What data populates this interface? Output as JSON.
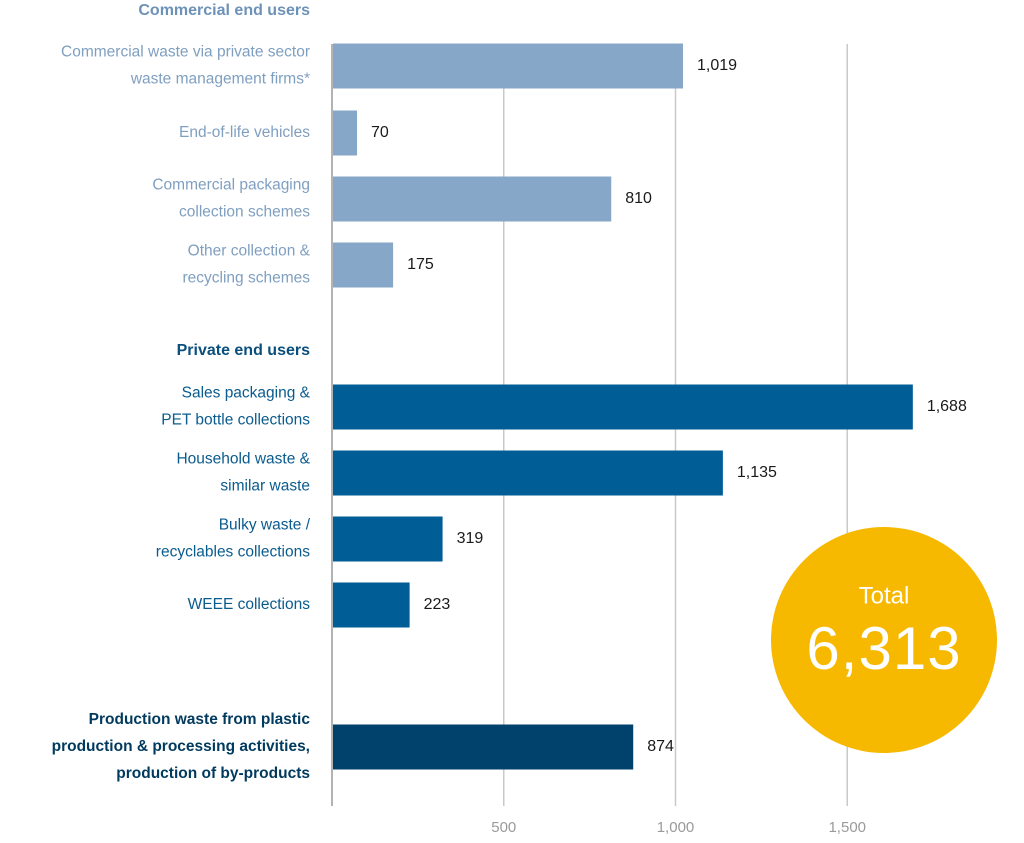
{
  "chart_data": {
    "type": "bar",
    "orientation": "horizontal",
    "groups": [
      {
        "title": "Commercial end users",
        "color": "#87a7c9",
        "label_color": "#7f9fc0",
        "title_color": "#6d92b8",
        "items": [
          {
            "label": [
              "Commercial waste via private sector",
              "waste management firms*"
            ],
            "value": 1019,
            "value_label": "1,019"
          },
          {
            "label": [
              "End-of-life vehicles"
            ],
            "value": 70,
            "value_label": "70"
          },
          {
            "label": [
              "Commercial packaging",
              "collection schemes"
            ],
            "value": 810,
            "value_label": "810"
          },
          {
            "label": [
              "Other collection &",
              "recycling schemes"
            ],
            "value": 175,
            "value_label": "175"
          }
        ]
      },
      {
        "title": "Private end users",
        "color": "#005d96",
        "label_color": "#0a5b8e",
        "title_color": "#0a4f7d",
        "items": [
          {
            "label": [
              "Sales packaging &",
              "PET bottle collections"
            ],
            "value": 1688,
            "value_label": "1,688"
          },
          {
            "label": [
              "Household waste &",
              "similar waste"
            ],
            "value": 1135,
            "value_label": "1,135"
          },
          {
            "label": [
              "Bulky waste /",
              "recyclables collections"
            ],
            "value": 319,
            "value_label": "319"
          },
          {
            "label": [
              "WEEE collections"
            ],
            "value": 223,
            "value_label": "223"
          }
        ]
      },
      {
        "title": "",
        "color": "#00426b",
        "label_color": "#003a5e",
        "bold_labels": true,
        "items": [
          {
            "label": [
              "Production waste from plastic",
              "production & processing activities,",
              "production of by-products"
            ],
            "value": 874,
            "value_label": "874"
          }
        ]
      }
    ],
    "x_ticks": [
      500,
      1000,
      1500
    ],
    "x_tick_labels": [
      "500",
      "1,000",
      "1,500"
    ],
    "xlim": [
      0,
      2000
    ],
    "grid": true,
    "total": {
      "label": "Total",
      "value": "6,313",
      "color": "#f7b900"
    }
  }
}
